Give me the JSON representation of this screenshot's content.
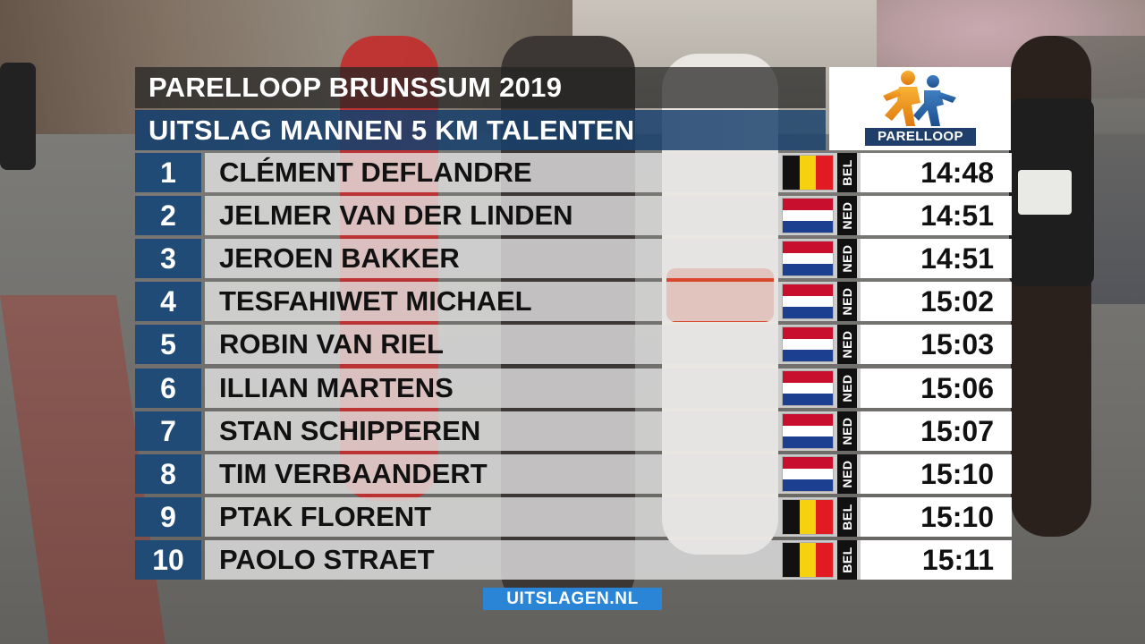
{
  "title": "PARELLOOP BRUNSSUM 2019",
  "subtitle": "UITSLAG MANNEN 5 KM TALENTEN",
  "logo": {
    "label": "PARELLOOP",
    "icon": "two-runners-icon"
  },
  "colors": {
    "rank_bg": "#1f4b76",
    "subtitle_bg": "#18406c",
    "footer_bg": "#2a85d6",
    "bel": [
      "#111111",
      "#f5d10f",
      "#e21b23"
    ],
    "ned": [
      "#c8102e",
      "#ffffff",
      "#1d3f8f"
    ]
  },
  "results": [
    {
      "rank": "1",
      "name": "CLÉMENT DEFLANDRE",
      "country": "BEL",
      "time": "14:48"
    },
    {
      "rank": "2",
      "name": "JELMER VAN DER LINDEN",
      "country": "NED",
      "time": "14:51"
    },
    {
      "rank": "3",
      "name": "JEROEN BAKKER",
      "country": "NED",
      "time": "14:51"
    },
    {
      "rank": "4",
      "name": "TESFAHIWET MICHAEL",
      "country": "NED",
      "time": "15:02"
    },
    {
      "rank": "5",
      "name": "ROBIN VAN RIEL",
      "country": "NED",
      "time": "15:03"
    },
    {
      "rank": "6",
      "name": "ILLIAN MARTENS",
      "country": "NED",
      "time": "15:06"
    },
    {
      "rank": "7",
      "name": "STAN SCHIPPEREN",
      "country": "NED",
      "time": "15:07"
    },
    {
      "rank": "8",
      "name": "TIM VERBAANDERT",
      "country": "NED",
      "time": "15:10"
    },
    {
      "rank": "9",
      "name": "PTAK FLORENT",
      "country": "BEL",
      "time": "15:10"
    },
    {
      "rank": "10",
      "name": "PAOLO STRAET",
      "country": "BEL",
      "time": "15:11"
    }
  ],
  "footer": "UITSLAGEN.NL"
}
